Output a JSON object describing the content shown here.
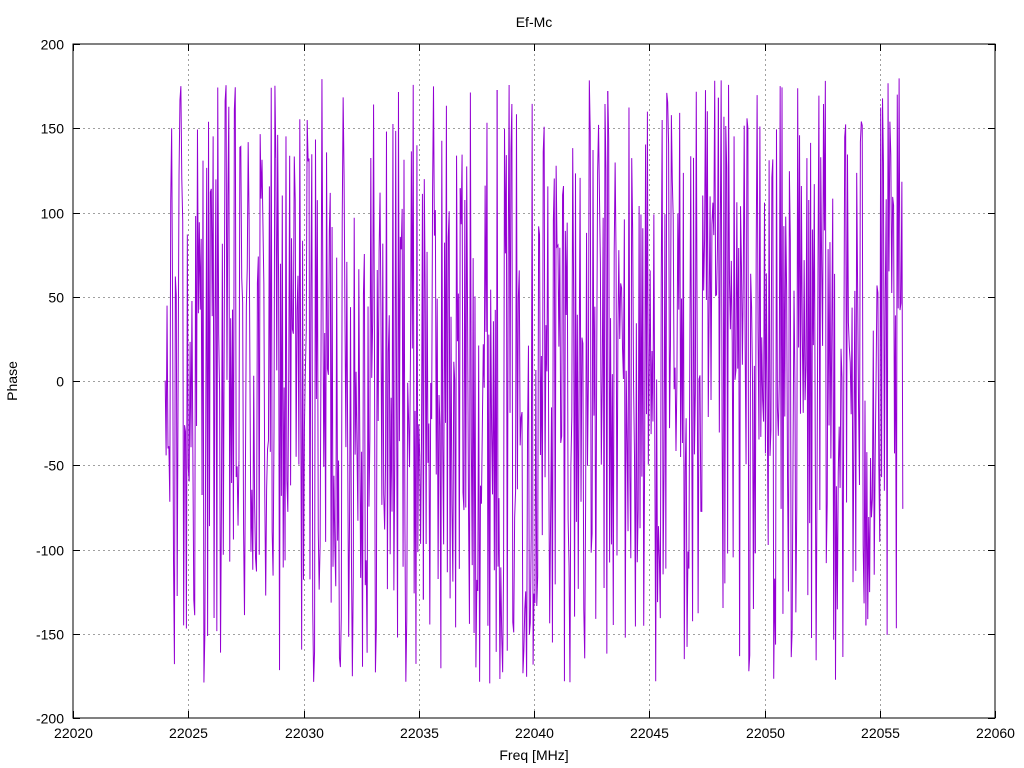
{
  "chart_data": {
    "type": "line",
    "title": "Ef-Mc",
    "xlabel": "Freq [MHz]",
    "ylabel": "Phase",
    "xlim": [
      22020,
      22060
    ],
    "ylim": [
      -200,
      200
    ],
    "x_ticks": [
      22020,
      22025,
      22030,
      22035,
      22040,
      22045,
      22050,
      22055,
      22060
    ],
    "y_ticks": [
      -200,
      -150,
      -100,
      -50,
      0,
      50,
      100,
      150,
      200
    ],
    "x_tick_labels": [
      "22020",
      "22025",
      "22030",
      "22035",
      "22040",
      "22045",
      "22050",
      "22055",
      "22060"
    ],
    "y_tick_labels": [
      "-200",
      "-150",
      "-100",
      "-50",
      "0",
      "50",
      "100",
      "150",
      "200"
    ],
    "grid": true,
    "series": [
      {
        "color": "#9400d3",
        "x_start": 22024.0,
        "x_end": 22056.0,
        "x_step": 0.04,
        "y_range": [
          -180,
          180
        ],
        "values_sample": [
          178,
          -170,
          85,
          -40,
          12,
          -108,
          75,
          150,
          -98,
          163,
          -168,
          62,
          -75,
          140,
          -172,
          30,
          -125,
          175,
          -60,
          95,
          -145,
          120,
          -30,
          50
        ]
      }
    ],
    "colors": {
      "series": "#9400d3",
      "grid": "#a0a0a0",
      "axes": "#000000"
    }
  }
}
